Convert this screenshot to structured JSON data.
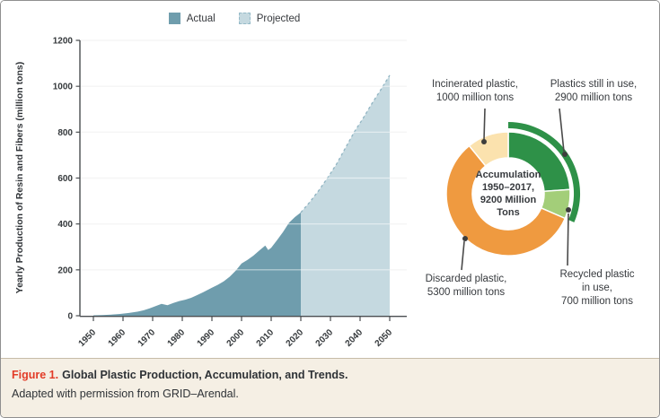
{
  "caption": {
    "label": "Figure 1.",
    "title": "Global Plastic Production, Accumulation, and Trends.",
    "note": "Adapted with permission from GRID–Arendal."
  },
  "legend": {
    "actual": "Actual",
    "projected": "Projected"
  },
  "donut_center": {
    "line1": "Accumulation",
    "line2": "1950–2017,",
    "line3": "9200 Million",
    "line4": "Tons"
  },
  "donut_labels": {
    "incinerated": {
      "line1": "Incinerated plastic,",
      "line2": "1000 million tons"
    },
    "in_use": {
      "line1": "Plastics still in use,",
      "line2": "2900 million tons"
    },
    "discarded": {
      "line1": "Discarded plastic,",
      "line2": "5300 million tons"
    },
    "recycled": {
      "line1": "Recycled plastic",
      "line2": "in use,",
      "line3": "700 million tons"
    }
  },
  "colors": {
    "actual": "#6f9dad",
    "projected": "#c5d9e0",
    "projected_edge": "#8fb4c2",
    "green_dark": "#2e9148",
    "green_light": "#a3ce79",
    "orange": "#ef9a40",
    "cream": "#fbe2ae",
    "figure_red": "#e23b27",
    "caption_bg": "#f5efe4",
    "axis": "#4a4e51"
  },
  "chart_data": [
    {
      "type": "area",
      "title": "Global plastic production, actual and projected",
      "xlabel": "",
      "ylabel": "Yearly Production of Resin and Fibers (million tons)",
      "ylim": [
        0,
        1200
      ],
      "yticks": [
        0,
        200,
        400,
        600,
        800,
        1000,
        1200
      ],
      "xticks": [
        1950,
        1960,
        1970,
        1980,
        1990,
        2000,
        2010,
        2020,
        2030,
        2040,
        2050
      ],
      "grid": true,
      "legend_position": "top",
      "series": [
        {
          "name": "Actual",
          "color": "#6f9dad",
          "points": [
            [
              1950,
              2
            ],
            [
              1953,
              3
            ],
            [
              1956,
              5
            ],
            [
              1959,
              8
            ],
            [
              1962,
              12
            ],
            [
              1965,
              18
            ],
            [
              1967,
              24
            ],
            [
              1969,
              32
            ],
            [
              1971,
              42
            ],
            [
              1973,
              52
            ],
            [
              1975,
              46
            ],
            [
              1977,
              56
            ],
            [
              1979,
              64
            ],
            [
              1981,
              70
            ],
            [
              1983,
              78
            ],
            [
              1985,
              90
            ],
            [
              1987,
              102
            ],
            [
              1990,
              122
            ],
            [
              1992,
              135
            ],
            [
              1994,
              150
            ],
            [
              1996,
              170
            ],
            [
              1998,
              196
            ],
            [
              2000,
              228
            ],
            [
              2002,
              243
            ],
            [
              2004,
              262
            ],
            [
              2006,
              284
            ],
            [
              2008,
              306
            ],
            [
              2009,
              286
            ],
            [
              2010,
              296
            ],
            [
              2012,
              330
            ],
            [
              2014,
              365
            ],
            [
              2016,
              405
            ],
            [
              2018,
              430
            ],
            [
              2020,
              450
            ]
          ]
        },
        {
          "name": "Projected",
          "color": "#c5d9e0",
          "edge_style": "dashed",
          "edge_color": "#8fb4c2",
          "points": [
            [
              2020,
              450
            ],
            [
              2023,
              495
            ],
            [
              2026,
              545
            ],
            [
              2029,
              600
            ],
            [
              2032,
              660
            ],
            [
              2035,
              730
            ],
            [
              2038,
              800
            ],
            [
              2041,
              860
            ],
            [
              2044,
              925
            ],
            [
              2047,
              985
            ],
            [
              2050,
              1048
            ]
          ]
        }
      ]
    },
    {
      "type": "donut",
      "title": "Accumulation 1950–2017, 9200 Million Tons",
      "total": 9200,
      "segments": [
        {
          "label": "Plastics still in use (non-recycled)",
          "value": 2200,
          "color": "#2e9148"
        },
        {
          "label": "Recycled plastic in use",
          "value": 700,
          "color": "#a3ce79"
        },
        {
          "label": "Discarded plastic",
          "value": 5300,
          "color": "#ef9a40"
        },
        {
          "label": "Incinerated plastic",
          "value": 1000,
          "color": "#fbe2ae"
        }
      ],
      "outer_arc": {
        "label": "Plastics still in use",
        "value": 2900,
        "color": "#2e9148"
      },
      "annotations": [
        "Incinerated plastic, 1000 million tons",
        "Plastics still in use, 2900 million tons",
        "Discarded plastic, 5300 million tons",
        "Recycled plastic in use, 700 million tons"
      ]
    }
  ]
}
